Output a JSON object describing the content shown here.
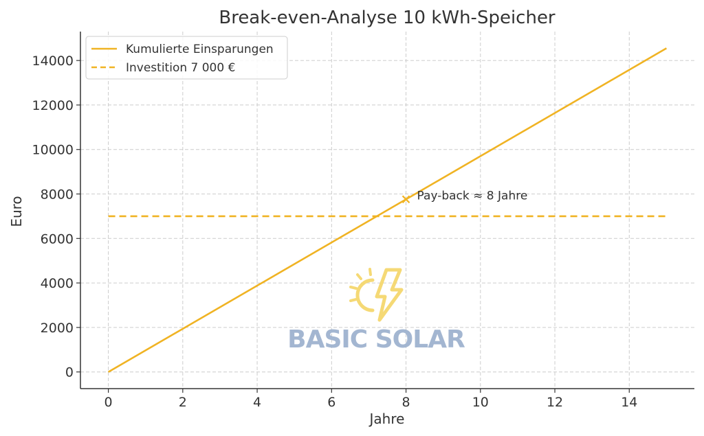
{
  "chart_data": {
    "type": "line",
    "title": "Break-even-Analyse 10 kWh-Speicher",
    "xlabel": "Jahre",
    "ylabel": "Euro",
    "xlim": [
      -0.75,
      15.75
    ],
    "ylim": [
      -750,
      15300
    ],
    "xticks": [
      0,
      2,
      4,
      6,
      8,
      10,
      12,
      14
    ],
    "yticks": [
      0,
      2000,
      4000,
      6000,
      8000,
      10000,
      12000,
      14000
    ],
    "grid": true,
    "legend_position": "top-left",
    "series": [
      {
        "name": "Kumulierte Einsparungen",
        "style": "solid",
        "color": "#f0b323",
        "x": [
          0,
          15
        ],
        "y": [
          0,
          14550
        ]
      },
      {
        "name": "Investition 7 000 €",
        "style": "dashed",
        "color": "#f0b323",
        "x": [
          0,
          15
        ],
        "y": [
          7000,
          7000
        ]
      }
    ],
    "annotations": [
      {
        "text": "Pay-back ≈ 8 Jahre",
        "marker": "x",
        "x": 8,
        "y": 7760
      }
    ]
  },
  "watermark": {
    "text": "BASIC SOLAR",
    "icon": "sun-lightning-icon",
    "text_color": "#9fb3cf",
    "icon_color": "#f5d76e"
  },
  "colors": {
    "axis": "#333333",
    "grid": "#cccccc",
    "line": "#f0b323"
  }
}
